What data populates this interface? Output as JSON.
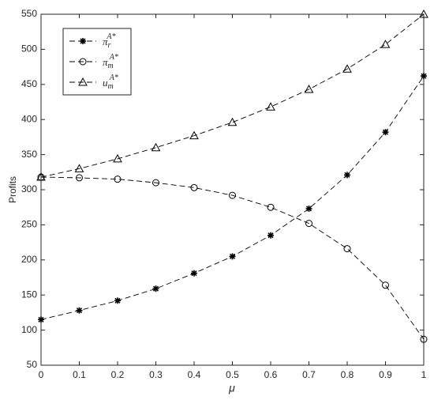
{
  "chart_data": {
    "type": "line",
    "x_label": "μ",
    "y_label": "Profits",
    "x": [
      0,
      0.1,
      0.2,
      0.3,
      0.4,
      0.5,
      0.6,
      0.7,
      0.8,
      0.9,
      1
    ],
    "series": [
      {
        "name": "πrA*",
        "marker": "asterisk",
        "color": "#000000",
        "values": [
          115,
          128,
          142,
          159,
          181,
          205,
          235,
          273,
          321,
          382,
          462
        ]
      },
      {
        "name": "πmA*",
        "marker": "circle",
        "color": "#000000",
        "values": [
          318,
          317,
          315,
          310,
          303,
          292,
          275,
          252,
          216,
          164,
          87
        ]
      },
      {
        "name": "umA*",
        "marker": "triangle",
        "color": "#000000",
        "values": [
          318,
          330,
          344,
          360,
          377,
          396,
          418,
          443,
          472,
          507,
          550
        ]
      }
    ],
    "xlim": [
      0,
      1
    ],
    "xticks": [
      0,
      0.1,
      0.2,
      0.3,
      0.4,
      0.5,
      0.6,
      0.7,
      0.8,
      0.9,
      1
    ],
    "ylim": [
      50,
      550
    ],
    "yticks": [
      50,
      100,
      150,
      200,
      250,
      300,
      350,
      400,
      450,
      500,
      550
    ],
    "legend": "upper left",
    "grid": false
  }
}
